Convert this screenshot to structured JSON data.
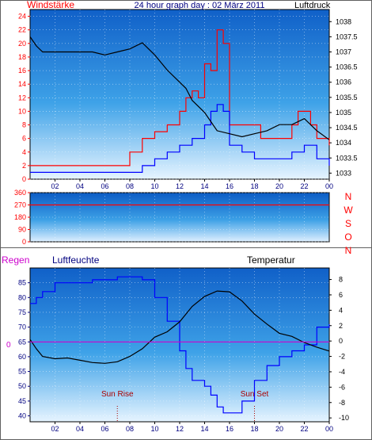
{
  "colors": {
    "red": "#ff0000",
    "blue": "#0000ff",
    "black": "#000000",
    "magenta": "#cc00cc",
    "navy": "#000080"
  },
  "chart_data": [
    {
      "type": "line",
      "title": "24 hour graph day : 02 März 2011",
      "left_axis_label": "Windstärke",
      "right_axis_label": "Luftdruck",
      "x_ticks": [
        "02",
        "04",
        "06",
        "08",
        "10",
        "12",
        "14",
        "16",
        "18",
        "20",
        "22",
        "00"
      ],
      "left_ticks": [
        0,
        2,
        4,
        6,
        8,
        10,
        12,
        14,
        16,
        18,
        20,
        22,
        24
      ],
      "right_ticks": [
        1033,
        1033.5,
        1034,
        1034.5,
        1035,
        1035.5,
        1036,
        1036.5,
        1037,
        1037.5,
        1038
      ],
      "ylim_left": [
        0,
        25
      ],
      "ylim_right": [
        1032.8,
        1038.4
      ],
      "grid": true,
      "series": [
        {
          "axis": "left",
          "color": "#ff0000",
          "points": [
            [
              0.0,
              2
            ],
            [
              1.0,
              2
            ],
            [
              2.0,
              2
            ],
            [
              3.0,
              2
            ],
            [
              4.0,
              2
            ],
            [
              5.0,
              2
            ],
            [
              6.0,
              2
            ],
            [
              7.0,
              2
            ],
            [
              8.0,
              4
            ],
            [
              9.0,
              6
            ],
            [
              10.0,
              7
            ],
            [
              11.0,
              8
            ],
            [
              12.0,
              10
            ],
            [
              12.5,
              12
            ],
            [
              13.0,
              13
            ],
            [
              13.5,
              12
            ],
            [
              14.0,
              17
            ],
            [
              14.5,
              16
            ],
            [
              15.0,
              22
            ],
            [
              15.5,
              20
            ],
            [
              16.0,
              8
            ],
            [
              17.0,
              8
            ],
            [
              18.0,
              8
            ],
            [
              18.5,
              6
            ],
            [
              19.0,
              6
            ],
            [
              20.0,
              6
            ],
            [
              21.0,
              8
            ],
            [
              21.5,
              10
            ],
            [
              22.0,
              10
            ],
            [
              22.5,
              8
            ],
            [
              23.0,
              6
            ],
            [
              24.0,
              5
            ]
          ]
        },
        {
          "axis": "left",
          "color": "#0000ff",
          "points": [
            [
              0.0,
              1
            ],
            [
              1.0,
              1
            ],
            [
              2.0,
              1
            ],
            [
              3.0,
              1
            ],
            [
              4.0,
              1
            ],
            [
              5.0,
              1
            ],
            [
              6.0,
              1
            ],
            [
              7.0,
              1
            ],
            [
              8.0,
              1
            ],
            [
              9.0,
              2
            ],
            [
              10.0,
              3
            ],
            [
              11.0,
              4
            ],
            [
              12.0,
              5
            ],
            [
              13.0,
              6
            ],
            [
              14.0,
              8
            ],
            [
              14.5,
              10
            ],
            [
              15.0,
              11
            ],
            [
              15.5,
              10
            ],
            [
              16.0,
              5
            ],
            [
              17.0,
              4
            ],
            [
              18.0,
              3
            ],
            [
              19.0,
              3
            ],
            [
              20.0,
              3
            ],
            [
              21.0,
              4
            ],
            [
              22.0,
              5
            ],
            [
              23.0,
              3
            ],
            [
              24.0,
              2
            ]
          ]
        },
        {
          "axis": "right",
          "color": "#000000",
          "points": [
            [
              0.0,
              1037.5
            ],
            [
              0.5,
              1037.2
            ],
            [
              1.0,
              1037.0
            ],
            [
              2.0,
              1037.0
            ],
            [
              3.0,
              1037.0
            ],
            [
              4.0,
              1037.0
            ],
            [
              5.0,
              1037.0
            ],
            [
              6.0,
              1036.9
            ],
            [
              7.0,
              1037.0
            ],
            [
              8.0,
              1037.1
            ],
            [
              9.0,
              1037.3
            ],
            [
              10.0,
              1036.9
            ],
            [
              11.0,
              1036.4
            ],
            [
              12.0,
              1036.0
            ],
            [
              12.5,
              1035.8
            ],
            [
              13.0,
              1035.4
            ],
            [
              14.0,
              1035.0
            ],
            [
              14.5,
              1034.7
            ],
            [
              15.0,
              1034.4
            ],
            [
              16.0,
              1034.3
            ],
            [
              17.0,
              1034.2
            ],
            [
              18.0,
              1034.3
            ],
            [
              19.0,
              1034.4
            ],
            [
              20.0,
              1034.6
            ],
            [
              21.0,
              1034.6
            ],
            [
              21.5,
              1034.7
            ],
            [
              22.0,
              1034.8
            ],
            [
              23.0,
              1034.4
            ],
            [
              24.0,
              1034.1
            ]
          ]
        }
      ]
    },
    {
      "type": "line",
      "title": "",
      "left_ticks": [
        0,
        90,
        180,
        270,
        360
      ],
      "right_labels": [
        "N",
        "W",
        "S",
        "O",
        "N"
      ],
      "ylim": [
        0,
        360
      ],
      "grid": true,
      "series": [
        {
          "color": "#ff0000",
          "points": [
            [
              0.0,
              270
            ],
            [
              1.0,
              270
            ],
            [
              2.0,
              270
            ],
            [
              3.0,
              270
            ],
            [
              4.0,
              270
            ],
            [
              5.0,
              270
            ],
            [
              6.0,
              270
            ],
            [
              7.0,
              270
            ],
            [
              8.0,
              270
            ],
            [
              9.0,
              270
            ],
            [
              10.0,
              270
            ],
            [
              11.0,
              270
            ],
            [
              12.0,
              270
            ],
            [
              13.0,
              270
            ],
            [
              14.0,
              270
            ],
            [
              15.0,
              270
            ],
            [
              16.0,
              270
            ],
            [
              17.0,
              270
            ],
            [
              18.0,
              270
            ],
            [
              19.0,
              270
            ],
            [
              20.0,
              270
            ],
            [
              21.0,
              270
            ],
            [
              22.0,
              270
            ],
            [
              23.0,
              270
            ],
            [
              24.0,
              270
            ]
          ]
        }
      ]
    },
    {
      "type": "line",
      "title": "",
      "left_axis_label": "Regen",
      "humidity_label": "Luftfeuchte",
      "right_axis_label": "Temperatur",
      "zero_label": "0",
      "x_ticks": [
        "02",
        "04",
        "06",
        "08",
        "10",
        "12",
        "14",
        "16",
        "18",
        "20",
        "22",
        "00"
      ],
      "left_ticks": [
        40,
        45,
        50,
        55,
        60,
        65,
        70,
        75,
        80,
        85
      ],
      "right_ticks": [
        -10,
        -8,
        -6,
        -4,
        -2,
        0,
        2,
        4,
        6,
        8
      ],
      "ylim_left": [
        38,
        90
      ],
      "ylim_right": [
        -10.5,
        9.5
      ],
      "grid": true,
      "annotations": [
        {
          "text": "Sun Rise",
          "x": 7.0
        },
        {
          "text": "Sun Set",
          "x": 18.0
        }
      ],
      "series": [
        {
          "axis": "left",
          "color": "#0000ff",
          "points": [
            [
              0.0,
              78
            ],
            [
              0.5,
              80
            ],
            [
              1.0,
              82
            ],
            [
              2.0,
              85
            ],
            [
              3.0,
              85
            ],
            [
              4.0,
              85
            ],
            [
              5.0,
              86
            ],
            [
              6.0,
              86
            ],
            [
              7.0,
              87
            ],
            [
              8.0,
              87
            ],
            [
              9.0,
              86
            ],
            [
              10.0,
              80
            ],
            [
              11.0,
              72
            ],
            [
              12.0,
              62
            ],
            [
              12.5,
              56
            ],
            [
              13.0,
              52
            ],
            [
              14.0,
              50
            ],
            [
              14.5,
              47
            ],
            [
              15.0,
              43
            ],
            [
              15.5,
              41
            ],
            [
              16.0,
              41
            ],
            [
              17.0,
              45
            ],
            [
              18.0,
              52
            ],
            [
              19.0,
              57
            ],
            [
              20.0,
              60
            ],
            [
              21.0,
              62
            ],
            [
              22.0,
              64
            ],
            [
              23.0,
              70
            ],
            [
              24.0,
              71
            ]
          ]
        },
        {
          "axis": "right",
          "color": "#000000",
          "points": [
            [
              0.0,
              0.2
            ],
            [
              0.5,
              -1.0
            ],
            [
              1.0,
              -2.0
            ],
            [
              2.0,
              -2.3
            ],
            [
              3.0,
              -2.2
            ],
            [
              4.0,
              -2.5
            ],
            [
              5.0,
              -2.8
            ],
            [
              6.0,
              -2.9
            ],
            [
              7.0,
              -2.7
            ],
            [
              8.0,
              -2.0
            ],
            [
              9.0,
              -1.0
            ],
            [
              10.0,
              0.5
            ],
            [
              11.0,
              1.2
            ],
            [
              12.0,
              2.5
            ],
            [
              12.5,
              3.5
            ],
            [
              13.0,
              4.5
            ],
            [
              14.0,
              5.8
            ],
            [
              15.0,
              6.5
            ],
            [
              16.0,
              6.4
            ],
            [
              17.0,
              5.2
            ],
            [
              18.0,
              3.5
            ],
            [
              19.0,
              2.2
            ],
            [
              20.0,
              1.0
            ],
            [
              21.0,
              0.6
            ],
            [
              22.0,
              -0.2
            ],
            [
              23.0,
              -0.8
            ],
            [
              24.0,
              -1.3
            ]
          ]
        },
        {
          "axis": "left",
          "color": "#cc00cc",
          "points": [
            [
              0.0,
              65
            ],
            [
              24.0,
              65
            ]
          ]
        }
      ]
    }
  ]
}
